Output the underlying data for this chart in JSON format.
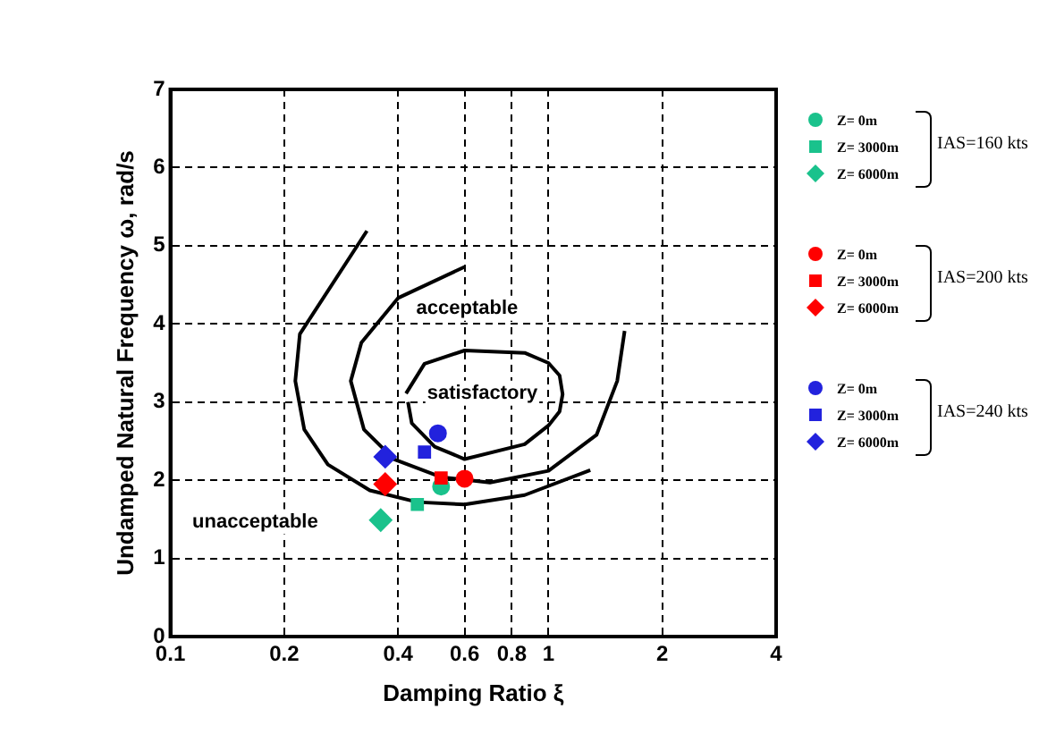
{
  "chart_data": {
    "type": "scatter",
    "xlabel": "Damping Ratio ξ",
    "ylabel": "Undamped Natural Frequency ω, rad/s",
    "log": "x",
    "xlim": [
      0.1,
      4
    ],
    "xticks": [
      0.1,
      0.2,
      0.4,
      0.6,
      0.8,
      1,
      2,
      4
    ],
    "ylim": [
      0,
      7
    ],
    "yticks": [
      0,
      1,
      2,
      3,
      4,
      5,
      6,
      7
    ],
    "grid": true,
    "legend": "right",
    "series": [
      {
        "type": "line",
        "color": "#000000",
        "marker": "none",
        "x": [
          0.331,
          0.22,
          0.214,
          0.226,
          0.261,
          0.337,
          0.45,
          0.6,
          0.865,
          1.29
        ],
        "values": [
          5.19,
          3.87,
          3.27,
          2.65,
          2.2,
          1.87,
          1.72,
          1.69,
          1.81,
          2.13
        ]
      },
      {
        "type": "line",
        "color": "#000000",
        "marker": "none",
        "x": [
          0.6,
          0.4,
          0.32,
          0.3,
          0.325,
          0.39,
          0.52,
          0.7,
          1.0,
          1.34,
          1.52,
          1.59
        ],
        "values": [
          4.73,
          4.33,
          3.76,
          3.27,
          2.65,
          2.27,
          2.04,
          1.97,
          2.12,
          2.58,
          3.27,
          3.91
        ]
      },
      {
        "type": "line",
        "color": "#000000",
        "marker": "none",
        "x": [
          0.42,
          0.47,
          0.6,
          0.865,
          1.0,
          1.07,
          1.09,
          1.07,
          1.0,
          0.865,
          0.6,
          0.5,
          0.435,
          0.425
        ],
        "values": [
          3.11,
          3.49,
          3.66,
          3.63,
          3.5,
          3.34,
          3.1,
          2.88,
          2.7,
          2.46,
          2.27,
          2.43,
          2.73,
          3.0
        ]
      },
      {
        "name": "Z= 0m",
        "color": "#1ac28c",
        "marker": "circle",
        "x": [
          0.52
        ],
        "values": [
          1.92
        ]
      },
      {
        "name": "Z= 3000m",
        "color": "#1ac28c",
        "marker": "square",
        "x": [
          0.45
        ],
        "values": [
          1.69
        ]
      },
      {
        "name": "Z= 6000m",
        "color": "#1ac28c",
        "marker": "diamond",
        "x": [
          0.36
        ],
        "values": [
          1.49
        ]
      },
      {
        "name": "Z= 0m",
        "color": "#ff0000",
        "marker": "circle",
        "x": [
          0.6
        ],
        "values": [
          2.02
        ]
      },
      {
        "name": "Z= 3000m",
        "color": "#ff0000",
        "marker": "square",
        "x": [
          0.52
        ],
        "values": [
          2.03
        ]
      },
      {
        "name": "Z= 6000m",
        "color": "#ff0000",
        "marker": "diamond",
        "x": [
          0.37
        ],
        "values": [
          1.95
        ]
      },
      {
        "name": "Z= 0m",
        "color": "#2222dd",
        "marker": "circle",
        "x": [
          0.51
        ],
        "values": [
          2.6
        ]
      },
      {
        "name": "Z= 3000m",
        "color": "#2222dd",
        "marker": "square",
        "x": [
          0.47
        ],
        "values": [
          2.36
        ]
      },
      {
        "name": "Z= 6000m",
        "color": "#2222dd",
        "marker": "diamond",
        "x": [
          0.37
        ],
        "values": [
          2.3
        ]
      }
    ],
    "annotations": [
      "acceptable",
      "satisfactory",
      "unacceptable",
      "IAS=160 kts",
      "IAS=200 kts",
      "IAS=240 kts"
    ]
  }
}
